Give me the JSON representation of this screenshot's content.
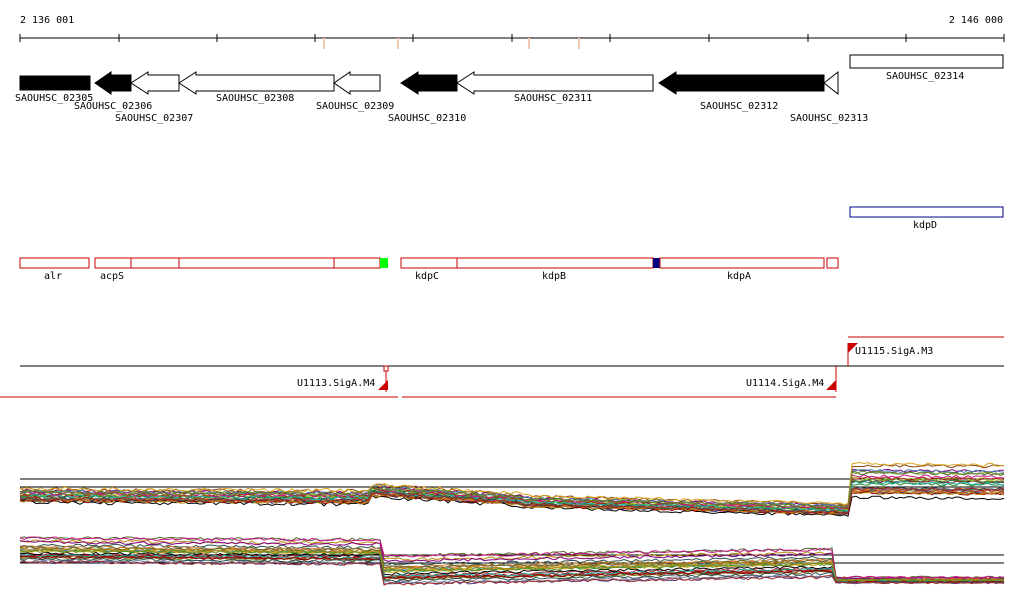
{
  "ruler": {
    "start_label": "2 136 001",
    "end_label": "2 146 000"
  },
  "genes": [
    {
      "name": "SAOUHSC_02305",
      "filled": true
    },
    {
      "name": "SAOUHSC_02306",
      "filled": true
    },
    {
      "name": "SAOUHSC_02307",
      "filled": false
    },
    {
      "name": "SAOUHSC_02308",
      "filled": false
    },
    {
      "name": "SAOUHSC_02309",
      "filled": false
    },
    {
      "name": "SAOUHSC_02310",
      "filled": true
    },
    {
      "name": "SAOUHSC_02311",
      "filled": false
    },
    {
      "name": "SAOUHSC_02312",
      "filled": true
    },
    {
      "name": "SAOUHSC_02313",
      "filled": false
    },
    {
      "name": "SAOUHSC_02314",
      "filled": false
    }
  ],
  "operons_top": [
    {
      "name": "kdpD"
    }
  ],
  "operons": [
    {
      "name": "alr"
    },
    {
      "name": "acpS"
    },
    {
      "name": "kdpC"
    },
    {
      "name": "kdpB"
    },
    {
      "name": "kdpA"
    }
  ],
  "promoters": [
    {
      "name": "U1113.SigA.M4"
    },
    {
      "name": "U1114.SigA.M4"
    },
    {
      "name": "U1115.SigA.M3"
    }
  ],
  "colors": {
    "gene_filled": "#000000",
    "operon_outline": "#cc0000",
    "operon_top_outline": "#00008b",
    "marker_green": "#00ff00",
    "marker_navy": "#000080",
    "promoter_red": "#cc0000",
    "tick_peach": "#f4c8b0"
  }
}
